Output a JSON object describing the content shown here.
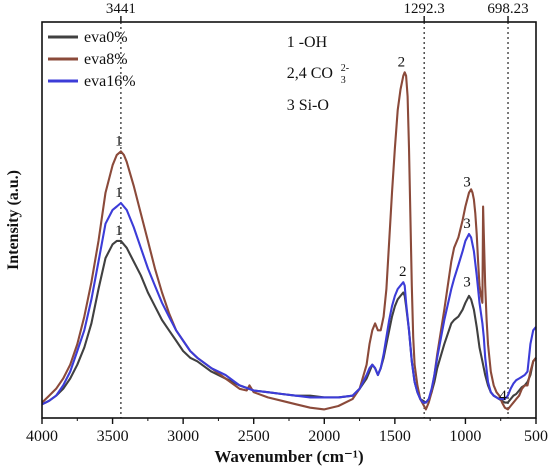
{
  "chart_data": {
    "type": "line",
    "title": "",
    "xlabel": "Wavenumber (cm⁻¹)",
    "ylabel": "Intensity (a.u.)",
    "x_reversed": true,
    "xlim": [
      4000,
      500
    ],
    "ylim": [
      0,
      100
    ],
    "x_ticks": [
      4000,
      3500,
      3000,
      2500,
      2000,
      1500,
      1000,
      500
    ],
    "y_ticks": [],
    "grid": false,
    "legend_position": "top-left",
    "reference_lines": [
      {
        "x": 3441,
        "label": "3441"
      },
      {
        "x": 1292.3,
        "label": "1292.3"
      },
      {
        "x": 698.23,
        "label": "698.23"
      }
    ],
    "assignments": [
      "1 -OH",
      "2,4 CO",
      "3 Si-O"
    ],
    "assignment_superscript": "2-",
    "assignment_subscript": "3",
    "peak_labels": [
      {
        "text": "1",
        "x": 3441,
        "y": 74
      },
      {
        "text": "1",
        "x": 3441,
        "y": 59
      },
      {
        "text": "1",
        "x": 3441,
        "y": 48
      },
      {
        "text": "2",
        "x": 1440,
        "y": 97
      },
      {
        "text": "2",
        "x": 1430,
        "y": 36
      },
      {
        "text": "3",
        "x": 975,
        "y": 62
      },
      {
        "text": "3",
        "x": 975,
        "y": 50
      },
      {
        "text": "3",
        "x": 975,
        "y": 33
      },
      {
        "text": "4",
        "x": 720,
        "y": 0
      }
    ],
    "series": [
      {
        "name": "eva0%",
        "color": "#404040",
        "x": [
          4000,
          3950,
          3900,
          3850,
          3800,
          3750,
          3700,
          3650,
          3600,
          3550,
          3500,
          3470,
          3441,
          3400,
          3350,
          3300,
          3250,
          3200,
          3150,
          3100,
          3050,
          3000,
          2950,
          2900,
          2800,
          2700,
          2600,
          2500,
          2400,
          2300,
          2200,
          2100,
          2000,
          1900,
          1800,
          1750,
          1700,
          1680,
          1660,
          1640,
          1620,
          1600,
          1580,
          1560,
          1540,
          1520,
          1500,
          1480,
          1460,
          1440,
          1430,
          1420,
          1400,
          1380,
          1360,
          1340,
          1320,
          1300,
          1280,
          1260,
          1240,
          1220,
          1200,
          1150,
          1100,
          1080,
          1050,
          1020,
          1000,
          975,
          960,
          940,
          920,
          900,
          880,
          860,
          840,
          820,
          800,
          780,
          760,
          740,
          720,
          700,
          680,
          660,
          640,
          620,
          600,
          580,
          560,
          540,
          520,
          500
        ],
        "y": [
          0.5,
          1.5,
          3,
          5,
          8,
          12,
          17,
          24,
          34,
          43,
          47,
          48,
          48,
          46,
          42,
          38,
          33,
          29,
          25,
          22,
          19,
          16,
          14,
          13,
          10,
          8,
          6,
          4.5,
          4,
          3.5,
          3,
          3,
          2.5,
          2.5,
          3,
          5,
          8,
          10,
          12,
          11,
          9,
          11,
          14,
          18,
          22,
          26,
          29,
          31,
          32,
          33,
          32,
          29,
          22,
          13,
          7,
          4,
          2,
          1.5,
          1,
          2,
          4,
          7,
          11,
          18,
          24,
          25,
          26,
          28,
          30,
          32,
          31,
          28,
          23,
          17,
          13,
          9,
          6,
          4,
          3,
          2.5,
          2,
          1.5,
          1,
          1,
          2,
          3,
          3.5,
          4.5,
          5.5,
          6,
          7,
          9,
          13,
          14
        ]
      },
      {
        "name": "eva8%",
        "color": "#8B4A3A",
        "x": [
          4000,
          3950,
          3900,
          3850,
          3800,
          3750,
          3700,
          3650,
          3600,
          3550,
          3500,
          3470,
          3441,
          3420,
          3400,
          3350,
          3300,
          3250,
          3200,
          3150,
          3100,
          3050,
          3000,
          2950,
          2900,
          2800,
          2700,
          2600,
          2550,
          2530,
          2500,
          2400,
          2300,
          2200,
          2100,
          2000,
          1900,
          1800,
          1750,
          1700,
          1680,
          1660,
          1640,
          1620,
          1600,
          1580,
          1560,
          1540,
          1520,
          1500,
          1480,
          1460,
          1440,
          1430,
          1420,
          1410,
          1400,
          1390,
          1380,
          1370,
          1360,
          1340,
          1320,
          1300,
          1280,
          1260,
          1240,
          1220,
          1200,
          1150,
          1100,
          1080,
          1050,
          1020,
          1000,
          975,
          960,
          950,
          940,
          930,
          920,
          910,
          900,
          890,
          880,
          875,
          870,
          860,
          850,
          840,
          820,
          800,
          780,
          760,
          740,
          720,
          700,
          680,
          660,
          640,
          620,
          600,
          580,
          560,
          540,
          520,
          500
        ],
        "y": [
          1,
          3,
          5,
          8,
          12,
          18,
          26,
          36,
          48,
          62,
          70,
          73,
          74,
          73,
          71,
          64,
          56,
          48,
          40,
          33,
          27,
          22,
          19,
          16,
          14,
          11,
          8,
          5,
          4.5,
          6,
          4,
          2.5,
          1.5,
          0.5,
          -0.5,
          -1,
          0,
          2,
          5,
          12,
          18,
          22,
          24,
          22,
          22,
          26,
          34,
          48,
          62,
          75,
          86,
          92,
          96,
          97,
          96,
          90,
          75,
          55,
          35,
          20,
          12,
          6,
          2,
          0.5,
          -1,
          1,
          4,
          9,
          15,
          28,
          42,
          46,
          49,
          54,
          58,
          62,
          63,
          62,
          60,
          56,
          50,
          42,
          35,
          32,
          30,
          58,
          50,
          35,
          25,
          18,
          10,
          6,
          4,
          3,
          1,
          -0.5,
          -1,
          0,
          1,
          2,
          3,
          5,
          6,
          6,
          10,
          13,
          14
        ]
      },
      {
        "name": "eva16%",
        "color": "#3C3CD8",
        "x": [
          4000,
          3950,
          3900,
          3850,
          3800,
          3750,
          3700,
          3650,
          3600,
          3550,
          3500,
          3470,
          3441,
          3400,
          3350,
          3300,
          3250,
          3200,
          3150,
          3100,
          3050,
          3000,
          2950,
          2900,
          2800,
          2700,
          2600,
          2500,
          2400,
          2300,
          2200,
          2100,
          2000,
          1900,
          1800,
          1750,
          1700,
          1680,
          1660,
          1640,
          1620,
          1600,
          1580,
          1560,
          1540,
          1520,
          1500,
          1480,
          1460,
          1440,
          1430,
          1420,
          1400,
          1380,
          1360,
          1340,
          1320,
          1300,
          1280,
          1260,
          1240,
          1220,
          1200,
          1150,
          1100,
          1080,
          1050,
          1020,
          1000,
          975,
          960,
          940,
          920,
          900,
          880,
          870,
          860,
          840,
          820,
          800,
          780,
          760,
          740,
          720,
          700,
          680,
          660,
          640,
          620,
          600,
          580,
          560,
          540,
          520,
          500
        ],
        "y": [
          0.5,
          1.5,
          3,
          6,
          10,
          16,
          22,
          31,
          42,
          53,
          57,
          58,
          59,
          57,
          52,
          46,
          40,
          35,
          30,
          26,
          22,
          19,
          16,
          14,
          11,
          9,
          6,
          4.5,
          4,
          3.5,
          3,
          2.5,
          2.5,
          2.5,
          3,
          5,
          9,
          11,
          12,
          11,
          9,
          11,
          15,
          20,
          25,
          29,
          32,
          34,
          35,
          36,
          35,
          30,
          22,
          13,
          7,
          4,
          2,
          1,
          1,
          2,
          5,
          9,
          14,
          25,
          34,
          37,
          41,
          45,
          48,
          50,
          49,
          45,
          38,
          30,
          24,
          20,
          14,
          7,
          4,
          3,
          2.5,
          2,
          2,
          2,
          3,
          5,
          6.5,
          7.5,
          8,
          8.5,
          9,
          10,
          18,
          22,
          23
        ]
      }
    ]
  }
}
